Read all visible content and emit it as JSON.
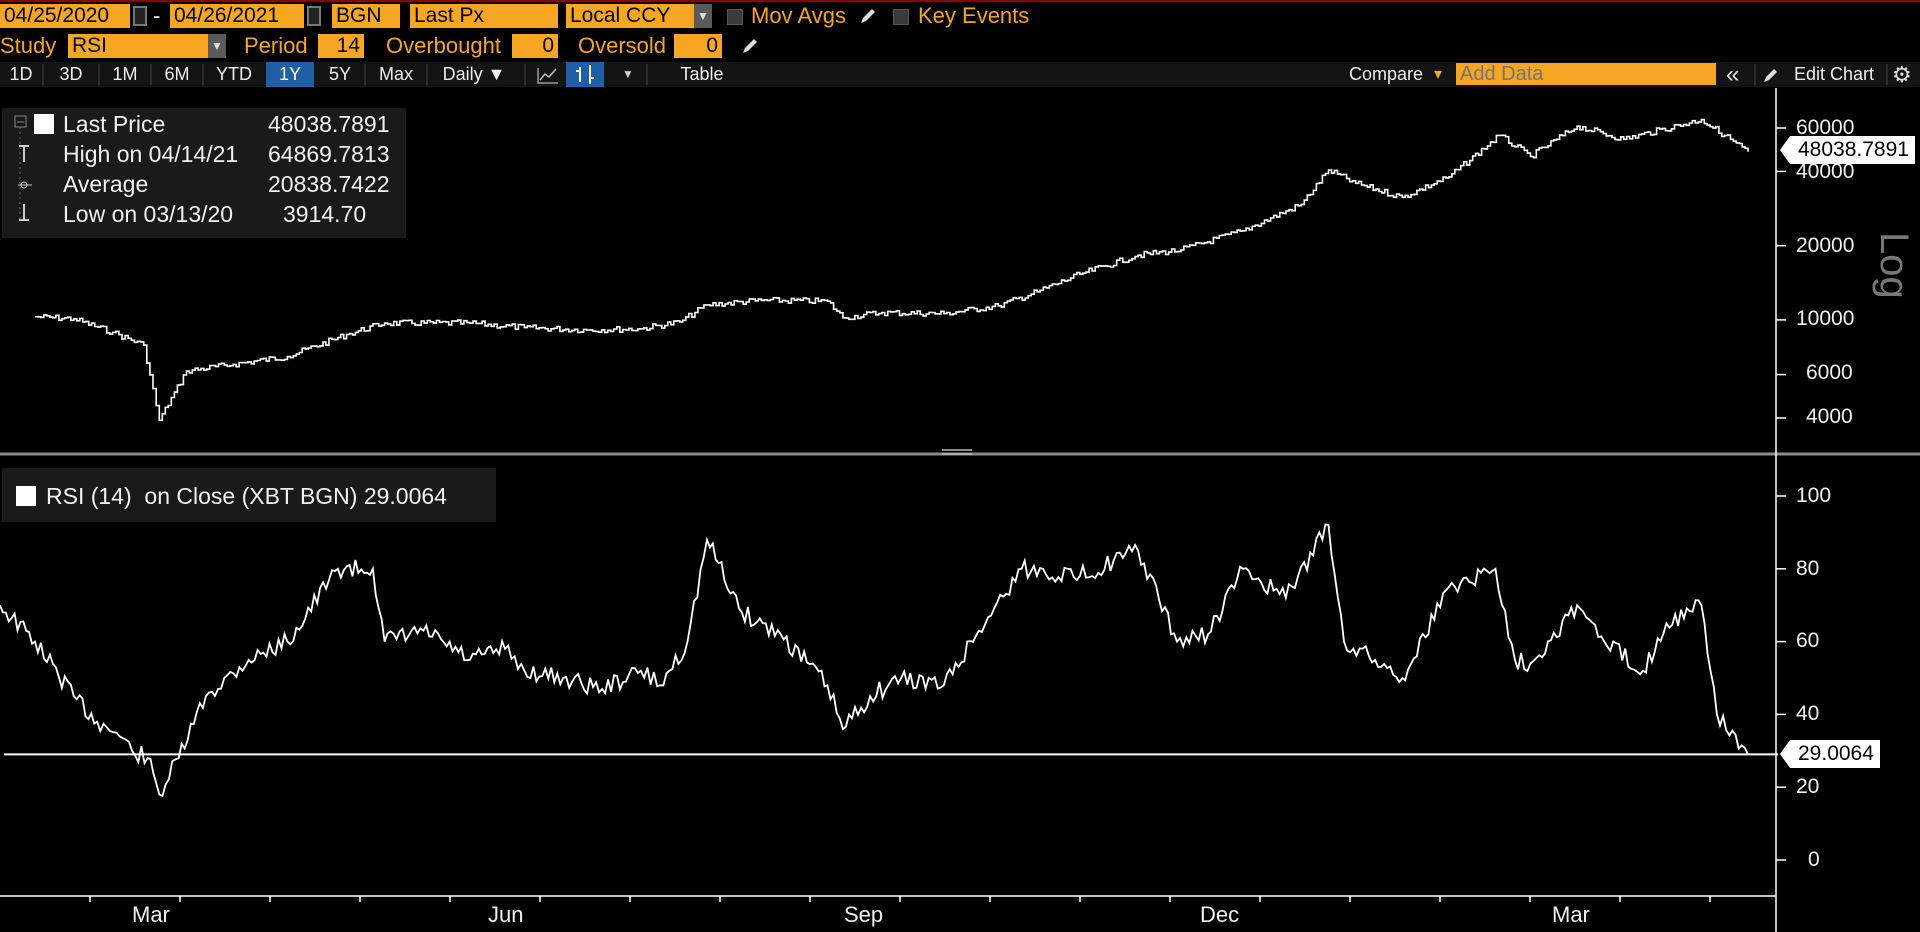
{
  "toolbar1": {
    "start_date": "04/25/2020",
    "dash": "-",
    "end_date": "04/26/2021",
    "source": "BGN",
    "field": "Last Px",
    "currency": "Local CCY",
    "mov_avgs": "Mov Avgs",
    "key_events": "Key Events"
  },
  "toolbar2": {
    "study_label": "Study",
    "study_value": "RSI",
    "period_label": "Period",
    "period_value": "14",
    "overbought_label": "Overbought",
    "overbought_value": "0",
    "oversold_label": "Oversold",
    "oversold_value": "0"
  },
  "tabs": {
    "items": [
      "1D",
      "3D",
      "1M",
      "6M",
      "YTD",
      "1Y",
      "5Y",
      "Max",
      "Daily ▼"
    ],
    "active": "1Y",
    "table": "Table",
    "compare": "Compare",
    "compare_arrow": "▾",
    "add_data_placeholder": "Add Data",
    "edit_chart": "Edit Chart"
  },
  "price_legend": {
    "last_label": "Last Price",
    "last_value": "48038.7891",
    "high_label": "High on 04/14/21",
    "high_value": "64869.7813",
    "avg_label": "Average",
    "avg_value": "20838.7422",
    "low_label": "Low on 03/13/20",
    "low_value": "3914.70"
  },
  "rsi_legend": {
    "text": "RSI (14)  on Close (XBT BGN) 29.0064"
  },
  "price_axis": {
    "ticks": [
      "60000",
      "40000",
      "20000",
      "10000",
      "6000",
      "4000"
    ],
    "scale_label": "Log",
    "last_flag": "48038.7891"
  },
  "rsi_axis": {
    "ticks": [
      "100",
      "80",
      "60",
      "40",
      "20",
      "0"
    ],
    "last_flag": "29.0064"
  },
  "x_axis": {
    "labels": [
      "Mar",
      "Jun",
      "Sep",
      "Dec",
      "Mar"
    ]
  },
  "colors": {
    "accent": "#f6a623",
    "active_tab": "#1f5fa8",
    "line": "#ffffff",
    "background": "#000000"
  },
  "chart_data": [
    {
      "type": "line",
      "title": "",
      "scale": "log",
      "ylim": [
        3500,
        66000
      ],
      "x": [
        "2020-02-10",
        "2020-02-20",
        "2020-03-01",
        "2020-03-09",
        "2020-03-13",
        "2020-03-20",
        "2020-04-01",
        "2020-04-15",
        "2020-05-01",
        "2020-05-10",
        "2020-06-01",
        "2020-06-15",
        "2020-07-01",
        "2020-07-15",
        "2020-07-25",
        "2020-08-01",
        "2020-08-15",
        "2020-09-01",
        "2020-09-05",
        "2020-09-15",
        "2020-10-01",
        "2020-10-15",
        "2020-10-25",
        "2020-11-05",
        "2020-11-20",
        "2020-12-01",
        "2020-12-17",
        "2021-01-01",
        "2021-01-08",
        "2021-01-15",
        "2021-01-27",
        "2021-02-08",
        "2021-02-21",
        "2021-03-01",
        "2021-03-13",
        "2021-03-25",
        "2021-04-14",
        "2021-04-20",
        "2021-04-26"
      ],
      "values": [
        10300,
        10100,
        8900,
        7900,
        3914.7,
        6200,
        6600,
        7100,
        8800,
        9700,
        9700,
        9300,
        9100,
        9200,
        9800,
        11500,
        12000,
        11900,
        10200,
        10700,
        10600,
        11400,
        13000,
        15300,
        18300,
        19200,
        23000,
        29400,
        40500,
        35800,
        31400,
        38000,
        56000,
        46000,
        61000,
        54000,
        64869.8,
        56000,
        48038.8
      ]
    },
    {
      "type": "line",
      "title": "RSI (14) on Close (XBT BGN)",
      "ylim": [
        -5,
        105
      ],
      "reference_line": 29.0064,
      "x": [
        "2020-02-01",
        "2020-02-10",
        "2020-02-20",
        "2020-02-26",
        "2020-03-02",
        "2020-03-06",
        "2020-03-10",
        "2020-03-13",
        "2020-03-18",
        "2020-03-25",
        "2020-04-05",
        "2020-04-15",
        "2020-04-28",
        "2020-05-07",
        "2020-05-10",
        "2020-05-20",
        "2020-06-01",
        "2020-06-10",
        "2020-06-15",
        "2020-06-25",
        "2020-07-05",
        "2020-07-15",
        "2020-07-20",
        "2020-07-27",
        "2020-08-01",
        "2020-08-10",
        "2020-08-20",
        "2020-09-01",
        "2020-09-05",
        "2020-09-12",
        "2020-09-20",
        "2020-10-01",
        "2020-10-10",
        "2020-10-21",
        "2020-11-05",
        "2020-11-20",
        "2020-11-30",
        "2020-12-08",
        "2020-12-17",
        "2020-12-28",
        "2021-01-08",
        "2021-01-12",
        "2021-01-20",
        "2021-01-27",
        "2021-02-08",
        "2021-02-20",
        "2021-02-25",
        "2021-03-01",
        "2021-03-13",
        "2021-03-20",
        "2021-03-30",
        "2021-04-05",
        "2021-04-14",
        "2021-04-18",
        "2021-04-26"
      ],
      "values": [
        70,
        60,
        45,
        38,
        35,
        30,
        28,
        18,
        28,
        45,
        55,
        60,
        80,
        80,
        60,
        63,
        55,
        58,
        52,
        50,
        47,
        52,
        48,
        60,
        88,
        68,
        62,
        48,
        36,
        45,
        50,
        48,
        63,
        80,
        78,
        85,
        60,
        62,
        80,
        72,
        92,
        60,
        55,
        50,
        75,
        80,
        55,
        54,
        70,
        60,
        52,
        65,
        70,
        40,
        29.0064
      ]
    }
  ]
}
